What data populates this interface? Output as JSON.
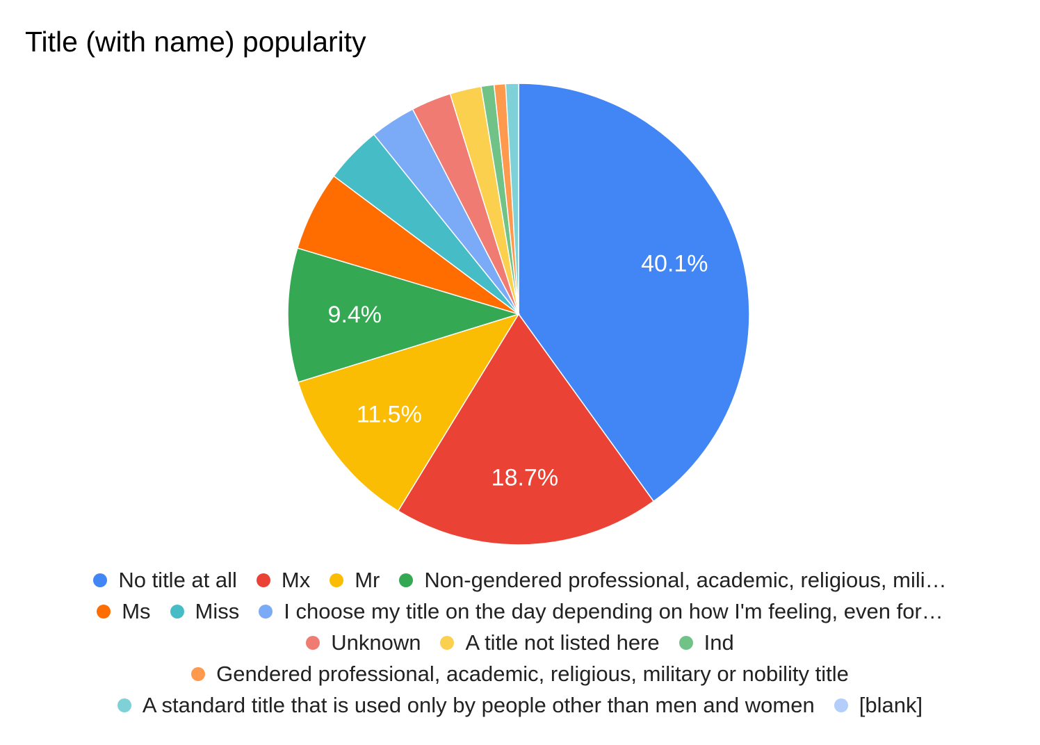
{
  "chart_data": {
    "type": "pie",
    "title": "Title (with name) popularity",
    "slices": [
      {
        "label": "No title at all",
        "value": 40.1,
        "color": "#4285F4",
        "data_label": "40.1%"
      },
      {
        "label": "Mx",
        "value": 18.7,
        "color": "#EA4335",
        "data_label": "18.7%"
      },
      {
        "label": "Mr",
        "value": 11.5,
        "color": "#FBBC04",
        "data_label": "11.5%"
      },
      {
        "label": "Non-gendered professional, academic, religious, mili…",
        "value": 9.4,
        "color": "#34A853",
        "data_label": "9.4%"
      },
      {
        "label": "Ms",
        "value": 5.6,
        "color": "#FF6D01",
        "data_label": ""
      },
      {
        "label": "Miss",
        "value": 4.0,
        "color": "#46BDC6",
        "data_label": ""
      },
      {
        "label": "I choose my title on the day depending on how I'm feeling, even for…",
        "value": 3.2,
        "color": "#7BAAF7",
        "data_label": ""
      },
      {
        "label": "Unknown",
        "value": 2.8,
        "color": "#F07B72",
        "data_label": ""
      },
      {
        "label": "A title not listed here",
        "value": 2.2,
        "color": "#FCD04F",
        "data_label": ""
      },
      {
        "label": "Ind",
        "value": 0.9,
        "color": "#71C287",
        "data_label": ""
      },
      {
        "label": "Gendered professional, academic, religious, military or nobility title",
        "value": 0.8,
        "color": "#FF994D",
        "data_label": ""
      },
      {
        "label": "A standard title that is used only by people other than men and women",
        "value": 0.9,
        "color": "#7ED1D7",
        "data_label": ""
      },
      {
        "label": "[blank]",
        "value": 0.0,
        "color": "#B3CEFB",
        "data_label": ""
      }
    ],
    "legend_position": "bottom"
  }
}
